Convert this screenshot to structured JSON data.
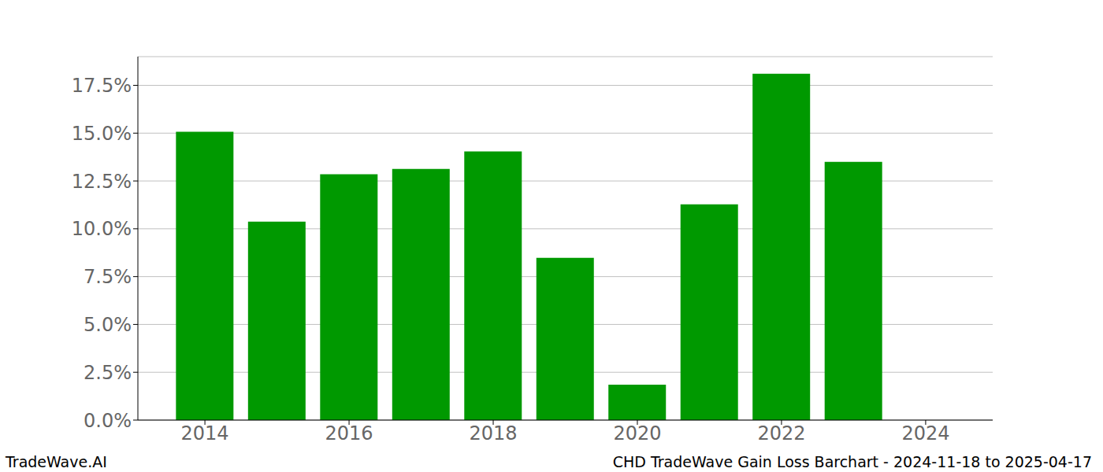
{
  "chart_data": {
    "type": "bar",
    "title": "CHD TradeWave Gain Loss Barchart - 2024-11-18 to 2025-04-17",
    "annotations": [
      "TradeWave.AI"
    ],
    "x": [
      2014,
      2015,
      2016,
      2017,
      2018,
      2019,
      2020,
      2021,
      2022,
      2023
    ],
    "values": [
      15.07,
      10.37,
      12.85,
      13.13,
      14.04,
      8.48,
      1.85,
      11.28,
      18.11,
      13.5
    ],
    "color": "#009900",
    "xlim": [
      2013.07,
      2024.93
    ],
    "xticks": [
      2014,
      2016,
      2018,
      2020,
      2022,
      2024
    ],
    "ylim": [
      0,
      19.0
    ],
    "yticks": [
      {
        "value": 0,
        "label": "0.0%"
      },
      {
        "value": 2.5,
        "label": "2.5%"
      },
      {
        "value": 5,
        "label": "5.0%"
      },
      {
        "value": 7.5,
        "label": "7.5%"
      },
      {
        "value": 10,
        "label": "10.0%"
      },
      {
        "value": 12.5,
        "label": "12.5%"
      },
      {
        "value": 15,
        "label": "15.0%"
      },
      {
        "value": 17.5,
        "label": "17.5%"
      }
    ],
    "grid": true
  }
}
